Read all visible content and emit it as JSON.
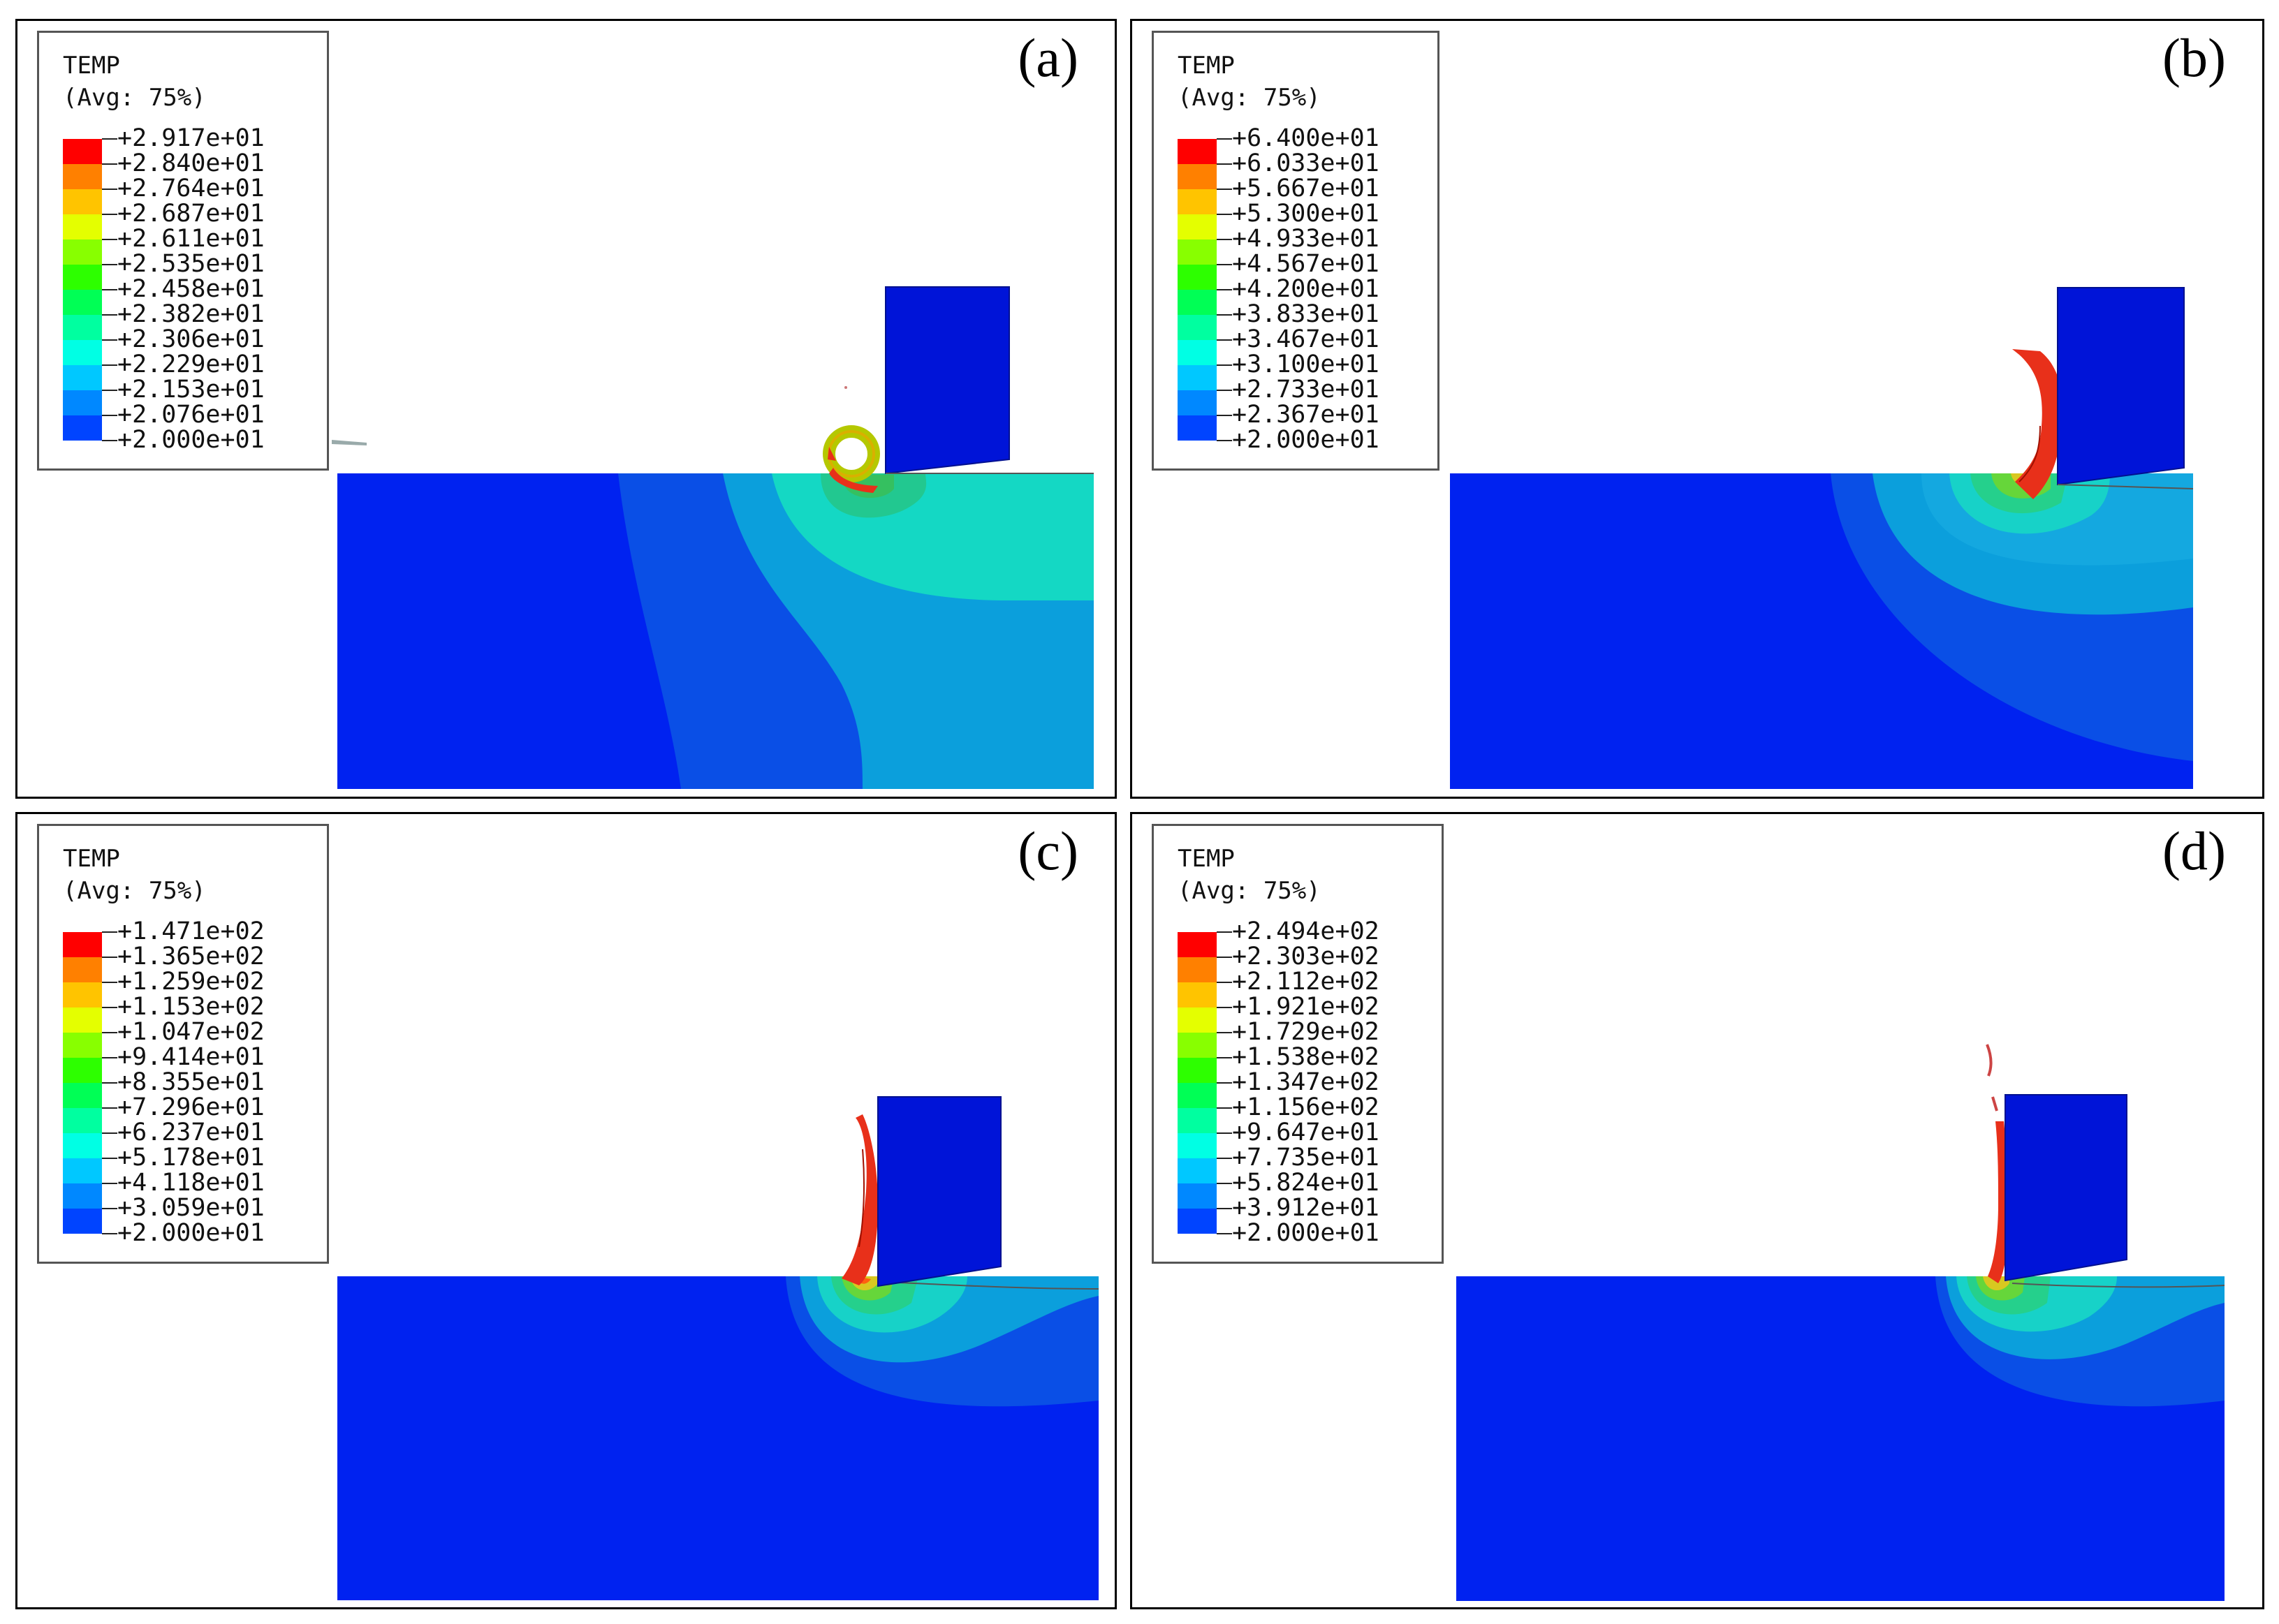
{
  "colormap": [
    "#0000ff",
    "#0044ff",
    "#0088ff",
    "#00c8ff",
    "#00ffe4",
    "#00ffa0",
    "#00ff55",
    "#2dff00",
    "#88ff00",
    "#e4ff00",
    "#ffc400",
    "#ff8000",
    "#ff0000"
  ],
  "panels": [
    {
      "label": "(a)",
      "legend_title": "TEMP",
      "legend_subtitle": "(Avg: 75%)",
      "legend_values": [
        "+2.917e+01",
        "+2.840e+01",
        "+2.764e+01",
        "+2.687e+01",
        "+2.611e+01",
        "+2.535e+01",
        "+2.458e+01",
        "+2.382e+01",
        "+2.306e+01",
        "+2.229e+01",
        "+2.153e+01",
        "+2.076e+01",
        "+2.000e+01"
      ]
    },
    {
      "label": "(b)",
      "legend_title": "TEMP",
      "legend_subtitle": "(Avg: 75%)",
      "legend_values": [
        "+6.400e+01",
        "+6.033e+01",
        "+5.667e+01",
        "+5.300e+01",
        "+4.933e+01",
        "+4.567e+01",
        "+4.200e+01",
        "+3.833e+01",
        "+3.467e+01",
        "+3.100e+01",
        "+2.733e+01",
        "+2.367e+01",
        "+2.000e+01"
      ]
    },
    {
      "label": "(c)",
      "legend_title": "TEMP",
      "legend_subtitle": "(Avg: 75%)",
      "legend_values": [
        "+1.471e+02",
        "+1.365e+02",
        "+1.259e+02",
        "+1.153e+02",
        "+1.047e+02",
        "+9.414e+01",
        "+8.355e+01",
        "+7.296e+01",
        "+6.237e+01",
        "+5.178e+01",
        "+4.118e+01",
        "+3.059e+01",
        "+2.000e+01"
      ]
    },
    {
      "label": "(d)",
      "legend_title": "TEMP",
      "legend_subtitle": "(Avg: 75%)",
      "legend_values": [
        "+2.494e+02",
        "+2.303e+02",
        "+2.112e+02",
        "+1.921e+02",
        "+1.729e+02",
        "+1.538e+02",
        "+1.347e+02",
        "+1.156e+02",
        "+9.647e+01",
        "+7.735e+01",
        "+5.824e+01",
        "+3.912e+01",
        "+2.000e+01"
      ]
    }
  ]
}
